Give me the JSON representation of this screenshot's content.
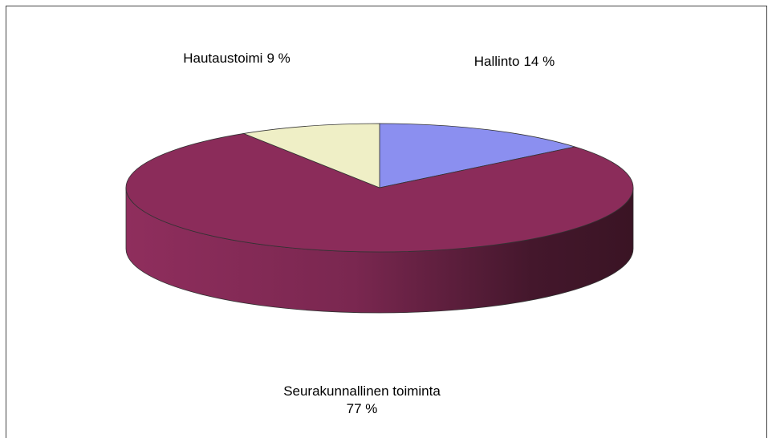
{
  "chart_data": {
    "type": "pie3d",
    "categories": [
      "Hallinto",
      "Seurakunnallinen toiminta",
      "Hautaustoimi"
    ],
    "values": [
      14,
      77,
      9
    ],
    "value_labels": [
      "14 %",
      "77 %",
      "9 %"
    ],
    "colors": [
      "#8b8ff0",
      "#8b2c5a",
      "#efefc6"
    ]
  }
}
